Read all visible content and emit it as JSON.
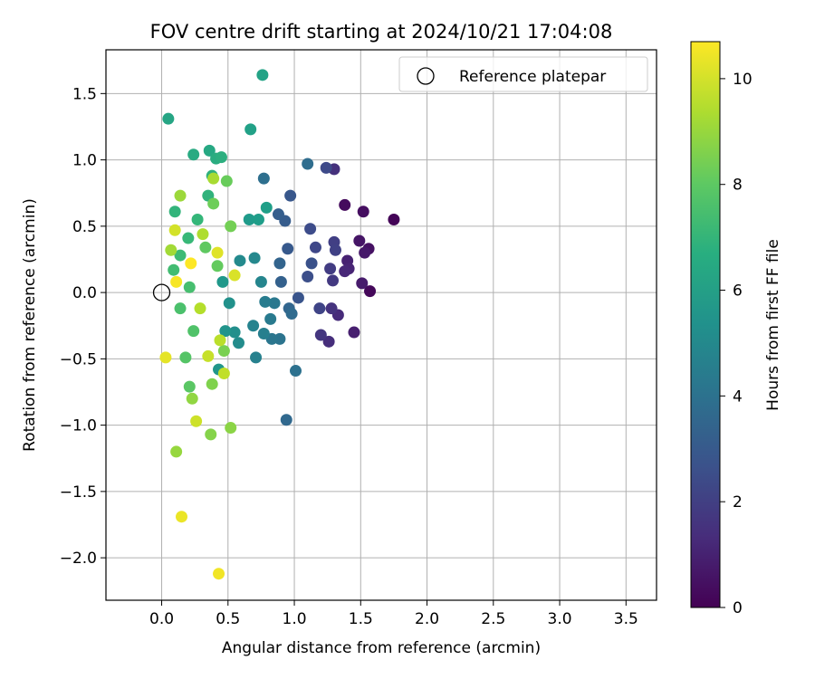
{
  "chart_data": {
    "type": "scatter",
    "title": "FOV centre drift starting at 2024/10/21 17:04:08",
    "xlabel": "Angular distance from reference (arcmin)",
    "ylabel": "Rotation from reference (arcmin)",
    "xlim": [
      -0.42,
      3.73
    ],
    "ylim": [
      -2.32,
      1.83
    ],
    "xticks": [
      0.0,
      0.5,
      1.0,
      1.5,
      2.0,
      2.5,
      3.0,
      3.5
    ],
    "xtick_labels": [
      "0.0",
      "0.5",
      "1.0",
      "1.5",
      "2.0",
      "2.5",
      "3.0",
      "3.5"
    ],
    "yticks": [
      -2.0,
      -1.5,
      -1.0,
      -0.5,
      0.0,
      0.5,
      1.0,
      1.5
    ],
    "ytick_labels": [
      "−2.0",
      "−1.5",
      "−1.0",
      "−0.5",
      "0.0",
      "0.5",
      "1.0",
      "1.5"
    ],
    "grid": true,
    "legend": {
      "placement": "top-right",
      "label": "Reference platepar"
    },
    "reference_point": {
      "x": 0.0,
      "y": 0.0
    },
    "colorbar": {
      "label": "Hours from first FF file",
      "colormap": "viridis",
      "range": [
        0,
        10.7
      ],
      "ticks": [
        0,
        2,
        4,
        6,
        8,
        10
      ],
      "tick_labels": [
        "0",
        "2",
        "4",
        "6",
        "8",
        "10"
      ]
    },
    "points": [
      {
        "x": 1.75,
        "y": 0.55,
        "h": 0.1
      },
      {
        "x": 1.57,
        "y": 0.01,
        "h": 0.2
      },
      {
        "x": 1.38,
        "y": 0.66,
        "h": 0.3
      },
      {
        "x": 1.52,
        "y": 0.61,
        "h": 0.4
      },
      {
        "x": 1.56,
        "y": 0.33,
        "h": 0.5
      },
      {
        "x": 1.49,
        "y": 0.39,
        "h": 0.6
      },
      {
        "x": 1.53,
        "y": 0.3,
        "h": 0.7
      },
      {
        "x": 1.51,
        "y": 0.07,
        "h": 0.8
      },
      {
        "x": 1.45,
        "y": -0.3,
        "h": 0.9
      },
      {
        "x": 1.4,
        "y": 0.24,
        "h": 1.0
      },
      {
        "x": 1.41,
        "y": 0.18,
        "h": 1.1
      },
      {
        "x": 1.38,
        "y": 0.16,
        "h": 1.2
      },
      {
        "x": 1.33,
        "y": -0.17,
        "h": 1.3
      },
      {
        "x": 1.26,
        "y": -0.37,
        "h": 1.4
      },
      {
        "x": 1.3,
        "y": 0.93,
        "h": 1.5
      },
      {
        "x": 1.28,
        "y": -0.12,
        "h": 1.6
      },
      {
        "x": 1.2,
        "y": -0.32,
        "h": 1.7
      },
      {
        "x": 1.29,
        "y": 0.09,
        "h": 1.8
      },
      {
        "x": 1.27,
        "y": 0.18,
        "h": 1.9
      },
      {
        "x": 1.3,
        "y": 0.38,
        "h": 2.0
      },
      {
        "x": 1.31,
        "y": 0.32,
        "h": 2.1
      },
      {
        "x": 1.19,
        "y": -0.12,
        "h": 2.2
      },
      {
        "x": 1.16,
        "y": 0.34,
        "h": 2.3
      },
      {
        "x": 1.24,
        "y": 0.94,
        "h": 2.4
      },
      {
        "x": 1.12,
        "y": 0.48,
        "h": 2.5
      },
      {
        "x": 1.1,
        "y": 0.12,
        "h": 2.6
      },
      {
        "x": 1.13,
        "y": 0.22,
        "h": 2.7
      },
      {
        "x": 1.03,
        "y": -0.04,
        "h": 2.8
      },
      {
        "x": 0.97,
        "y": 0.73,
        "h": 2.9
      },
      {
        "x": 0.95,
        "y": 0.33,
        "h": 3.0
      },
      {
        "x": 0.93,
        "y": 0.54,
        "h": 3.1
      },
      {
        "x": 0.88,
        "y": 0.59,
        "h": 3.2
      },
      {
        "x": 0.9,
        "y": 0.08,
        "h": 3.3
      },
      {
        "x": 0.89,
        "y": 0.22,
        "h": 3.4
      },
      {
        "x": 0.96,
        "y": -0.12,
        "h": 3.5
      },
      {
        "x": 0.94,
        "y": -0.96,
        "h": 3.6
      },
      {
        "x": 0.98,
        "y": -0.16,
        "h": 3.7
      },
      {
        "x": 1.1,
        "y": 0.97,
        "h": 3.8
      },
      {
        "x": 0.77,
        "y": 0.86,
        "h": 3.9
      },
      {
        "x": 1.01,
        "y": -0.59,
        "h": 4.0
      },
      {
        "x": 0.89,
        "y": -0.35,
        "h": 4.1
      },
      {
        "x": 0.83,
        "y": -0.35,
        "h": 4.2
      },
      {
        "x": 0.85,
        "y": -0.08,
        "h": 4.3
      },
      {
        "x": 0.82,
        "y": -0.2,
        "h": 4.4
      },
      {
        "x": 0.78,
        "y": -0.07,
        "h": 4.5
      },
      {
        "x": 0.77,
        "y": -0.31,
        "h": 4.6
      },
      {
        "x": 0.71,
        "y": -0.49,
        "h": 4.7
      },
      {
        "x": 0.69,
        "y": -0.25,
        "h": 4.8
      },
      {
        "x": 0.75,
        "y": 0.08,
        "h": 4.9
      },
      {
        "x": 0.7,
        "y": 0.26,
        "h": 5.0
      },
      {
        "x": 0.59,
        "y": 0.24,
        "h": 5.1
      },
      {
        "x": 0.58,
        "y": -0.38,
        "h": 5.2
      },
      {
        "x": 0.55,
        "y": -0.3,
        "h": 5.3
      },
      {
        "x": 0.51,
        "y": -0.08,
        "h": 5.4
      },
      {
        "x": 0.48,
        "y": -0.29,
        "h": 5.5
      },
      {
        "x": 0.43,
        "y": -0.58,
        "h": 5.6
      },
      {
        "x": 0.46,
        "y": 0.08,
        "h": 5.7
      },
      {
        "x": 0.66,
        "y": 0.55,
        "h": 5.8
      },
      {
        "x": 0.73,
        "y": 0.55,
        "h": 5.9
      },
      {
        "x": 0.79,
        "y": 0.64,
        "h": 6.0
      },
      {
        "x": 0.67,
        "y": 1.23,
        "h": 6.1
      },
      {
        "x": 0.76,
        "y": 1.64,
        "h": 6.2
      },
      {
        "x": 0.05,
        "y": 1.31,
        "h": 6.3
      },
      {
        "x": 0.36,
        "y": 1.07,
        "h": 6.4
      },
      {
        "x": 0.24,
        "y": 1.04,
        "h": 6.5
      },
      {
        "x": 0.41,
        "y": 1.01,
        "h": 6.6
      },
      {
        "x": 0.45,
        "y": 1.02,
        "h": 6.7
      },
      {
        "x": 0.38,
        "y": 0.88,
        "h": 6.8
      },
      {
        "x": 0.35,
        "y": 0.73,
        "h": 6.9
      },
      {
        "x": 0.1,
        "y": 0.61,
        "h": 7.0
      },
      {
        "x": 0.27,
        "y": 0.55,
        "h": 7.1
      },
      {
        "x": 0.2,
        "y": 0.41,
        "h": 7.2
      },
      {
        "x": 0.14,
        "y": 0.28,
        "h": 7.3
      },
      {
        "x": 0.09,
        "y": 0.17,
        "h": 7.4
      },
      {
        "x": 0.21,
        "y": 0.04,
        "h": 7.5
      },
      {
        "x": 0.14,
        "y": -0.12,
        "h": 7.6
      },
      {
        "x": 0.24,
        "y": -0.29,
        "h": 7.7
      },
      {
        "x": 0.18,
        "y": -0.49,
        "h": 7.8
      },
      {
        "x": 0.21,
        "y": -0.71,
        "h": 7.9
      },
      {
        "x": 0.33,
        "y": 0.34,
        "h": 8.0
      },
      {
        "x": 0.42,
        "y": 0.2,
        "h": 8.1
      },
      {
        "x": 0.49,
        "y": 0.84,
        "h": 8.2
      },
      {
        "x": 0.39,
        "y": 0.67,
        "h": 8.3
      },
      {
        "x": 0.52,
        "y": 0.5,
        "h": 8.4
      },
      {
        "x": 0.47,
        "y": -0.44,
        "h": 8.5
      },
      {
        "x": 0.38,
        "y": -0.69,
        "h": 8.6
      },
      {
        "x": 0.37,
        "y": -1.07,
        "h": 8.7
      },
      {
        "x": 0.52,
        "y": -1.02,
        "h": 8.8
      },
      {
        "x": 0.23,
        "y": -0.8,
        "h": 8.9
      },
      {
        "x": 0.11,
        "y": -1.2,
        "h": 9.0
      },
      {
        "x": 0.14,
        "y": 0.73,
        "h": 9.1
      },
      {
        "x": 0.07,
        "y": 0.32,
        "h": 9.2
      },
      {
        "x": 0.39,
        "y": 0.86,
        "h": 9.3
      },
      {
        "x": 0.31,
        "y": 0.44,
        "h": 9.4
      },
      {
        "x": 0.29,
        "y": -0.12,
        "h": 9.5
      },
      {
        "x": 0.44,
        "y": -0.36,
        "h": 9.6
      },
      {
        "x": 0.47,
        "y": -0.61,
        "h": 9.7
      },
      {
        "x": 0.35,
        "y": -0.48,
        "h": 9.8
      },
      {
        "x": 0.26,
        "y": -0.97,
        "h": 9.9
      },
      {
        "x": 0.1,
        "y": 0.47,
        "h": 10.0
      },
      {
        "x": 0.55,
        "y": 0.13,
        "h": 10.1
      },
      {
        "x": 0.42,
        "y": 0.3,
        "h": 10.2
      },
      {
        "x": 0.03,
        "y": -0.49,
        "h": 10.3
      },
      {
        "x": 0.15,
        "y": -1.69,
        "h": 10.4
      },
      {
        "x": 0.43,
        "y": -2.12,
        "h": 10.5
      },
      {
        "x": 0.11,
        "y": 0.08,
        "h": 10.6
      },
      {
        "x": 0.22,
        "y": 0.22,
        "h": 10.7
      }
    ]
  }
}
